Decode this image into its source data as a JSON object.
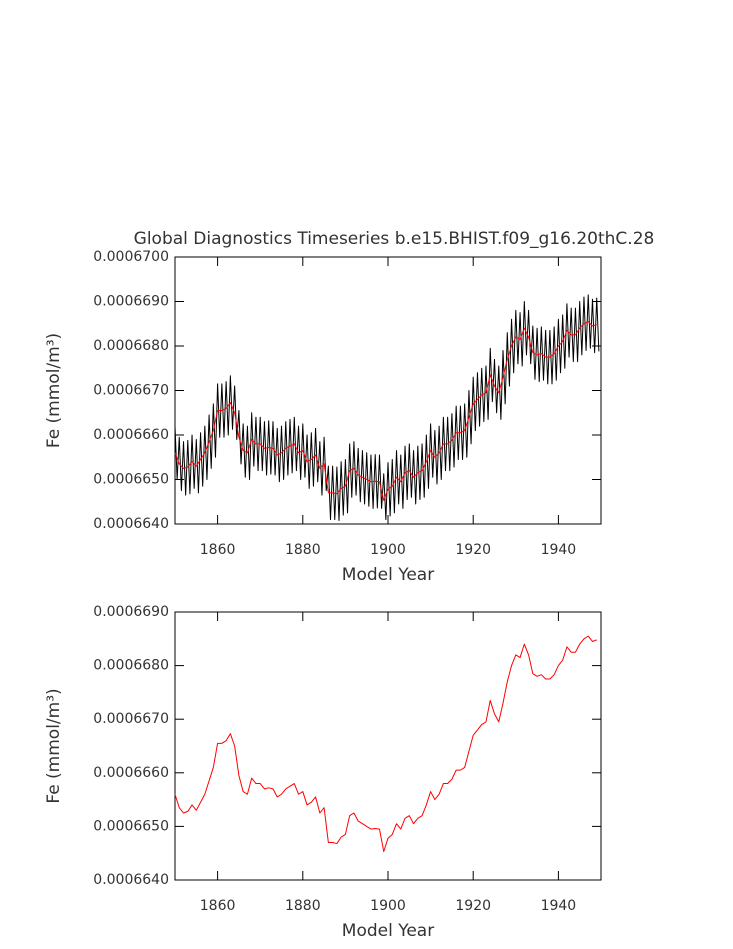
{
  "chart_data": [
    {
      "type": "line",
      "title": "Global Diagnostics Timeseries b.e15.BHIST.f09_g16.20thC.28",
      "xlabel": "Model Year",
      "ylabel": "Fe (mmol/m³)",
      "xlim": [
        1850,
        1950
      ],
      "xticks": [
        1860,
        1880,
        1900,
        1920,
        1940
      ],
      "ylim": [
        0.000664,
        0.00067
      ],
      "yticks": [
        {
          "value": 0.000664,
          "label": "0.0006640"
        },
        {
          "value": 0.000665,
          "label": "0.0006650"
        },
        {
          "value": 0.000666,
          "label": "0.0006660"
        },
        {
          "value": 0.000667,
          "label": "0.0006670"
        },
        {
          "value": 0.000668,
          "label": "0.0006680"
        },
        {
          "value": 0.000669,
          "label": "0.0006690"
        },
        {
          "value": 0.00067,
          "label": "0.0006700"
        }
      ],
      "series": [
        {
          "color": "#000000",
          "x": [
            1850,
            1850.5,
            1851,
            1851.5,
            1852,
            1852.5,
            1853,
            1853.5,
            1854,
            1854.5,
            1855,
            1855.5,
            1856,
            1856.5,
            1857,
            1857.5,
            1858,
            1858.5,
            1859,
            1859.5,
            1860,
            1860.5,
            1861,
            1861.5,
            1862,
            1862.5,
            1863,
            1863.5,
            1864,
            1864.5,
            1865,
            1865.5,
            1866,
            1866.5,
            1867,
            1867.5,
            1868,
            1868.5,
            1869,
            1869.5,
            1870,
            1870.5,
            1871,
            1871.5,
            1872,
            1872.5,
            1873,
            1873.5,
            1874,
            1874.5,
            1875,
            1875.5,
            1876,
            1876.5,
            1877,
            1877.5,
            1878,
            1878.5,
            1879,
            1879.5,
            1880,
            1880.5,
            1881,
            1881.5,
            1882,
            1882.5,
            1883,
            1883.5,
            1884,
            1884.5,
            1885,
            1885.5,
            1886,
            1886.5,
            1887,
            1887.5,
            1888,
            1888.5,
            1889,
            1889.5,
            1890,
            1890.5,
            1891,
            1891.5,
            1892,
            1892.5,
            1893,
            1893.5,
            1894,
            1894.5,
            1895,
            1895.5,
            1896,
            1896.5,
            1897,
            1897.5,
            1898,
            1898.5,
            1899,
            1899.5,
            1900,
            1900.5,
            1901,
            1901.5,
            1902,
            1902.5,
            1903,
            1903.5,
            1904,
            1904.5,
            1905,
            1905.5,
            1906,
            1906.5,
            1907,
            1907.5,
            1908,
            1908.5,
            1909,
            1909.5,
            1910,
            1910.5,
            1911,
            1911.5,
            1912,
            1912.5,
            1913,
            1913.5,
            1914,
            1914.5,
            1915,
            1915.5,
            1916,
            1916.5,
            1917,
            1917.5,
            1918,
            1918.5,
            1919,
            1919.5,
            1920,
            1920.5,
            1921,
            1921.5,
            1922,
            1922.5,
            1923,
            1923.5,
            1924,
            1924.5,
            1925,
            1925.5,
            1926,
            1926.5,
            1927,
            1927.5,
            1928,
            1928.5,
            1929,
            1929.5,
            1930,
            1930.5,
            1931,
            1931.5,
            1932,
            1932.5,
            1933,
            1933.5,
            1934,
            1934.5,
            1935,
            1935.5,
            1936,
            1936.5,
            1937,
            1937.5,
            1938,
            1938.5,
            1939,
            1939.5,
            1940,
            1940.5,
            1941,
            1941.5,
            1942,
            1942.5,
            1943,
            1943.5,
            1944,
            1944.5,
            1945,
            1945.5,
            1946,
            1946.5,
            1947,
            1947.5,
            1948,
            1948.5,
            1949,
            1949.5
          ],
          "values": [
            0.0006662,
            0.000665,
            0.00066595,
            0.00066475,
            0.00066585,
            0.00066465,
            0.00066588,
            0.00066468,
            0.000666,
            0.0006648,
            0.0006659,
            0.0006647,
            0.00066605,
            0.00066485,
            0.0006662,
            0.000665,
            0.00066645,
            0.00066525,
            0.0006667,
            0.0006655,
            0.00066715,
            0.00066595,
            0.00066715,
            0.00066595,
            0.0006672,
            0.000666,
            0.00066733,
            0.00066613,
            0.0006671,
            0.0006659,
            0.00066655,
            0.00066535,
            0.00066625,
            0.00066505,
            0.0006662,
            0.000665,
            0.0006665,
            0.0006653,
            0.0006664,
            0.0006652,
            0.0006664,
            0.0006652,
            0.0006663,
            0.0006651,
            0.00066632,
            0.00066512,
            0.0006663,
            0.0006651,
            0.00066615,
            0.00066495,
            0.0006662,
            0.000665,
            0.0006663,
            0.0006651,
            0.00066635,
            0.00066515,
            0.0006664,
            0.0006652,
            0.0006662,
            0.000665,
            0.00066625,
            0.00066505,
            0.000666,
            0.0006648,
            0.00066605,
            0.00066485,
            0.00066615,
            0.00066495,
            0.00066585,
            0.00066465,
            0.00066595,
            0.00066475,
            0.0006653,
            0.0006641,
            0.0006653,
            0.0006641,
            0.00066528,
            0.00066408,
            0.0006654,
            0.0006642,
            0.00066545,
            0.00066425,
            0.0006658,
            0.0006646,
            0.00066585,
            0.00066465,
            0.0006657,
            0.0006645,
            0.00066565,
            0.00066445,
            0.0006656,
            0.0006644,
            0.00066555,
            0.00066435,
            0.00066556,
            0.00066436,
            0.00066555,
            0.00066435,
            0.00066513,
            0.0006641,
            0.00066538,
            0.00066418,
            0.00066545,
            0.00066425,
            0.00066565,
            0.00066445,
            0.00066555,
            0.00066435,
            0.00066575,
            0.00066455,
            0.0006658,
            0.0006646,
            0.00066565,
            0.00066445,
            0.00066575,
            0.00066455,
            0.0006658,
            0.0006646,
            0.000666,
            0.0006648,
            0.00066625,
            0.00066505,
            0.0006661,
            0.0006649,
            0.0006662,
            0.000665,
            0.0006664,
            0.0006652,
            0.0006664,
            0.0006652,
            0.00066648,
            0.00066528,
            0.00066665,
            0.00066545,
            0.00066665,
            0.00066545,
            0.0006667,
            0.0006655,
            0.000667,
            0.0006658,
            0.0006673,
            0.0006661,
            0.0006674,
            0.0006662,
            0.0006675,
            0.0006663,
            0.00066755,
            0.00066635,
            0.00066795,
            0.00066675,
            0.0006677,
            0.0006665,
            0.00066755,
            0.00066635,
            0.0006679,
            0.0006667,
            0.0006683,
            0.0006671,
            0.0006686,
            0.0006674,
            0.0006688,
            0.0006676,
            0.00066875,
            0.00066755,
            0.000669,
            0.0006678,
            0.0006688,
            0.0006676,
            0.00066845,
            0.00066725,
            0.0006684,
            0.0006672,
            0.00066843,
            0.00066723,
            0.00066835,
            0.00066715,
            0.00066835,
            0.00066715,
            0.00066843,
            0.00066723,
            0.0006686,
            0.0006674,
            0.0006687,
            0.0006675,
            0.00066895,
            0.00066775,
            0.00066885,
            0.00066765,
            0.00066885,
            0.00066765,
            0.000669,
            0.0006678,
            0.0006691,
            0.0006679,
            0.00066915,
            0.00066795,
            0.00066905,
            0.00066785,
            0.00066908,
            0.00066788
          ]
        },
        {
          "color": "#ff0000",
          "x": [
            1850,
            1851,
            1852,
            1853,
            1854,
            1855,
            1856,
            1857,
            1858,
            1859,
            1860,
            1861,
            1862,
            1863,
            1864,
            1865,
            1866,
            1867,
            1868,
            1869,
            1870,
            1871,
            1872,
            1873,
            1874,
            1875,
            1876,
            1877,
            1878,
            1879,
            1880,
            1881,
            1882,
            1883,
            1884,
            1885,
            1886,
            1887,
            1888,
            1889,
            1890,
            1891,
            1892,
            1893,
            1894,
            1895,
            1896,
            1897,
            1898,
            1899,
            1900,
            1901,
            1902,
            1903,
            1904,
            1905,
            1906,
            1907,
            1908,
            1909,
            1910,
            1911,
            1912,
            1913,
            1914,
            1915,
            1916,
            1917,
            1918,
            1919,
            1920,
            1921,
            1922,
            1923,
            1924,
            1925,
            1926,
            1927,
            1928,
            1929,
            1930,
            1931,
            1932,
            1933,
            1934,
            1935,
            1936,
            1937,
            1938,
            1939,
            1940,
            1941,
            1942,
            1943,
            1944,
            1945,
            1946,
            1947,
            1948,
            1949
          ],
          "values": [
            0.0006656,
            0.00066535,
            0.00066525,
            0.00066528,
            0.0006654,
            0.0006653,
            0.00066545,
            0.0006656,
            0.00066585,
            0.0006661,
            0.00066655,
            0.00066655,
            0.0006666,
            0.00066673,
            0.0006665,
            0.00066595,
            0.00066565,
            0.0006656,
            0.0006659,
            0.0006658,
            0.0006658,
            0.0006657,
            0.00066572,
            0.0006657,
            0.00066555,
            0.0006656,
            0.0006657,
            0.00066575,
            0.0006658,
            0.0006656,
            0.00066565,
            0.0006654,
            0.00066545,
            0.00066555,
            0.00066525,
            0.00066535,
            0.0006647,
            0.0006647,
            0.00066468,
            0.0006648,
            0.00066485,
            0.0006652,
            0.00066525,
            0.0006651,
            0.00066505,
            0.000665,
            0.00066495,
            0.00066496,
            0.00066495,
            0.00066453,
            0.00066478,
            0.00066485,
            0.00066505,
            0.00066495,
            0.00066515,
            0.0006652,
            0.00066505,
            0.00066515,
            0.0006652,
            0.0006654,
            0.00066565,
            0.0006655,
            0.0006656,
            0.0006658,
            0.0006658,
            0.00066588,
            0.00066605,
            0.00066605,
            0.0006661,
            0.0006664,
            0.0006667,
            0.0006668,
            0.0006669,
            0.00066695,
            0.00066735,
            0.0006671,
            0.00066695,
            0.0006673,
            0.0006677,
            0.000668,
            0.0006682,
            0.00066815,
            0.0006684,
            0.0006682,
            0.00066785,
            0.0006678,
            0.00066783,
            0.00066775,
            0.00066775,
            0.00066783,
            0.000668,
            0.0006681,
            0.00066835,
            0.00066825,
            0.00066825,
            0.0006684,
            0.0006685,
            0.00066855,
            0.00066845,
            0.00066848
          ]
        }
      ]
    },
    {
      "type": "line",
      "xlabel": "Model Year",
      "ylabel": "Fe (mmol/m³)",
      "xlim": [
        1850,
        1950
      ],
      "xticks": [
        1860,
        1880,
        1900,
        1920,
        1940
      ],
      "ylim": [
        0.000664,
        0.000669
      ],
      "yticks": [
        {
          "value": 0.000664,
          "label": "0.0006640"
        },
        {
          "value": 0.000665,
          "label": "0.0006650"
        },
        {
          "value": 0.000666,
          "label": "0.0006660"
        },
        {
          "value": 0.000667,
          "label": "0.0006670"
        },
        {
          "value": 0.000668,
          "label": "0.0006680"
        },
        {
          "value": 0.000669,
          "label": "0.0006690"
        }
      ],
      "series": [
        {
          "color": "#ff0000",
          "x": [
            1850,
            1851,
            1852,
            1853,
            1854,
            1855,
            1856,
            1857,
            1858,
            1859,
            1860,
            1861,
            1862,
            1863,
            1864,
            1865,
            1866,
            1867,
            1868,
            1869,
            1870,
            1871,
            1872,
            1873,
            1874,
            1875,
            1876,
            1877,
            1878,
            1879,
            1880,
            1881,
            1882,
            1883,
            1884,
            1885,
            1886,
            1887,
            1888,
            1889,
            1890,
            1891,
            1892,
            1893,
            1894,
            1895,
            1896,
            1897,
            1898,
            1899,
            1900,
            1901,
            1902,
            1903,
            1904,
            1905,
            1906,
            1907,
            1908,
            1909,
            1910,
            1911,
            1912,
            1913,
            1914,
            1915,
            1916,
            1917,
            1918,
            1919,
            1920,
            1921,
            1922,
            1923,
            1924,
            1925,
            1926,
            1927,
            1928,
            1929,
            1930,
            1931,
            1932,
            1933,
            1934,
            1935,
            1936,
            1937,
            1938,
            1939,
            1940,
            1941,
            1942,
            1943,
            1944,
            1945,
            1946,
            1947,
            1948,
            1949
          ],
          "values": [
            0.0006656,
            0.00066535,
            0.00066525,
            0.00066528,
            0.0006654,
            0.0006653,
            0.00066545,
            0.0006656,
            0.00066585,
            0.0006661,
            0.00066655,
            0.00066655,
            0.0006666,
            0.00066673,
            0.0006665,
            0.00066595,
            0.00066565,
            0.0006656,
            0.0006659,
            0.0006658,
            0.0006658,
            0.0006657,
            0.00066572,
            0.0006657,
            0.00066555,
            0.0006656,
            0.0006657,
            0.00066575,
            0.0006658,
            0.0006656,
            0.00066565,
            0.0006654,
            0.00066545,
            0.00066555,
            0.00066525,
            0.00066535,
            0.0006647,
            0.0006647,
            0.00066468,
            0.0006648,
            0.00066485,
            0.0006652,
            0.00066525,
            0.0006651,
            0.00066505,
            0.000665,
            0.00066495,
            0.00066496,
            0.00066495,
            0.00066453,
            0.00066478,
            0.00066485,
            0.00066505,
            0.00066495,
            0.00066515,
            0.0006652,
            0.00066505,
            0.00066515,
            0.0006652,
            0.0006654,
            0.00066565,
            0.0006655,
            0.0006656,
            0.0006658,
            0.0006658,
            0.00066588,
            0.00066605,
            0.00066605,
            0.0006661,
            0.0006664,
            0.0006667,
            0.0006668,
            0.0006669,
            0.00066695,
            0.00066735,
            0.0006671,
            0.00066695,
            0.0006673,
            0.0006677,
            0.000668,
            0.0006682,
            0.00066815,
            0.0006684,
            0.0006682,
            0.00066785,
            0.0006678,
            0.00066783,
            0.00066775,
            0.00066775,
            0.00066783,
            0.000668,
            0.0006681,
            0.00066835,
            0.00066825,
            0.00066825,
            0.0006684,
            0.0006685,
            0.00066855,
            0.00066845,
            0.00066848
          ]
        }
      ]
    }
  ]
}
